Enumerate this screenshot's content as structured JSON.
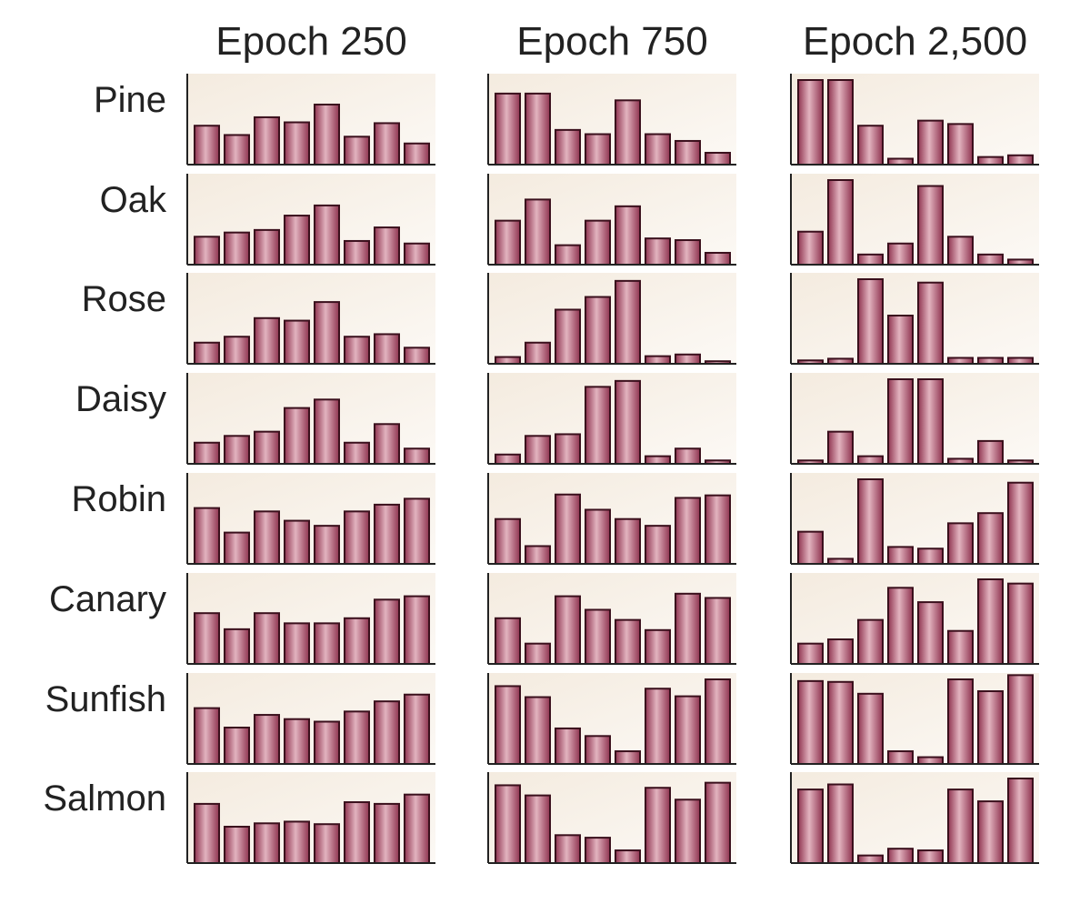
{
  "chart_data": {
    "type": "bar",
    "columns": [
      "Epoch 250",
      "Epoch 750",
      "Epoch 2,500"
    ],
    "rows": [
      "Pine",
      "Oak",
      "Rose",
      "Daisy",
      "Robin",
      "Canary",
      "Sunfish",
      "Salmon"
    ],
    "bars_per_panel": 8,
    "ylim": [
      0,
      1
    ],
    "grid": false,
    "bar_color": "#b0566e",
    "panel_background": "#f6efe6",
    "values": [
      [
        [
          0.46,
          0.35,
          0.56,
          0.5,
          0.71,
          0.33,
          0.49,
          0.25
        ],
        [
          0.84,
          0.84,
          0.41,
          0.36,
          0.76,
          0.36,
          0.28,
          0.14
        ],
        [
          1.0,
          1.0,
          0.46,
          0.07,
          0.52,
          0.48,
          0.09,
          0.11
        ]
      ],
      [
        [
          0.33,
          0.38,
          0.41,
          0.58,
          0.7,
          0.28,
          0.44,
          0.25
        ],
        [
          0.52,
          0.77,
          0.23,
          0.52,
          0.69,
          0.31,
          0.29,
          0.14
        ],
        [
          0.39,
          1.0,
          0.12,
          0.25,
          0.93,
          0.33,
          0.12,
          0.06
        ]
      ],
      [
        [
          0.25,
          0.32,
          0.54,
          0.51,
          0.73,
          0.32,
          0.35,
          0.19
        ],
        [
          0.08,
          0.25,
          0.64,
          0.79,
          0.98,
          0.09,
          0.11,
          0.03
        ],
        [
          0.04,
          0.06,
          1.0,
          0.57,
          0.96,
          0.07,
          0.07,
          0.07
        ]
      ],
      [
        [
          0.25,
          0.33,
          0.38,
          0.66,
          0.76,
          0.25,
          0.47,
          0.18
        ],
        [
          0.11,
          0.33,
          0.35,
          0.91,
          0.98,
          0.09,
          0.18,
          0.04
        ],
        [
          0.04,
          0.38,
          0.09,
          1.0,
          1.0,
          0.06,
          0.27,
          0.04
        ]
      ],
      [
        [
          0.66,
          0.37,
          0.62,
          0.51,
          0.45,
          0.62,
          0.7,
          0.77
        ],
        [
          0.53,
          0.21,
          0.82,
          0.64,
          0.53,
          0.45,
          0.78,
          0.81
        ],
        [
          0.38,
          0.06,
          1.0,
          0.2,
          0.18,
          0.48,
          0.6,
          0.96
        ]
      ],
      [
        [
          0.6,
          0.41,
          0.6,
          0.48,
          0.48,
          0.54,
          0.76,
          0.8
        ],
        [
          0.54,
          0.24,
          0.8,
          0.64,
          0.52,
          0.4,
          0.83,
          0.78
        ],
        [
          0.24,
          0.29,
          0.52,
          0.9,
          0.73,
          0.39,
          1.0,
          0.95
        ]
      ],
      [
        [
          0.66,
          0.43,
          0.58,
          0.53,
          0.5,
          0.62,
          0.74,
          0.82
        ],
        [
          0.92,
          0.79,
          0.42,
          0.33,
          0.15,
          0.89,
          0.8,
          1.0
        ],
        [
          0.98,
          0.97,
          0.83,
          0.15,
          0.08,
          1.0,
          0.86,
          1.05
        ]
      ],
      [
        [
          0.7,
          0.43,
          0.47,
          0.49,
          0.46,
          0.72,
          0.7,
          0.81
        ],
        [
          0.92,
          0.8,
          0.33,
          0.3,
          0.15,
          0.89,
          0.75,
          0.95
        ],
        [
          0.87,
          0.93,
          0.09,
          0.17,
          0.15,
          0.87,
          0.73,
          1.0
        ]
      ]
    ]
  }
}
